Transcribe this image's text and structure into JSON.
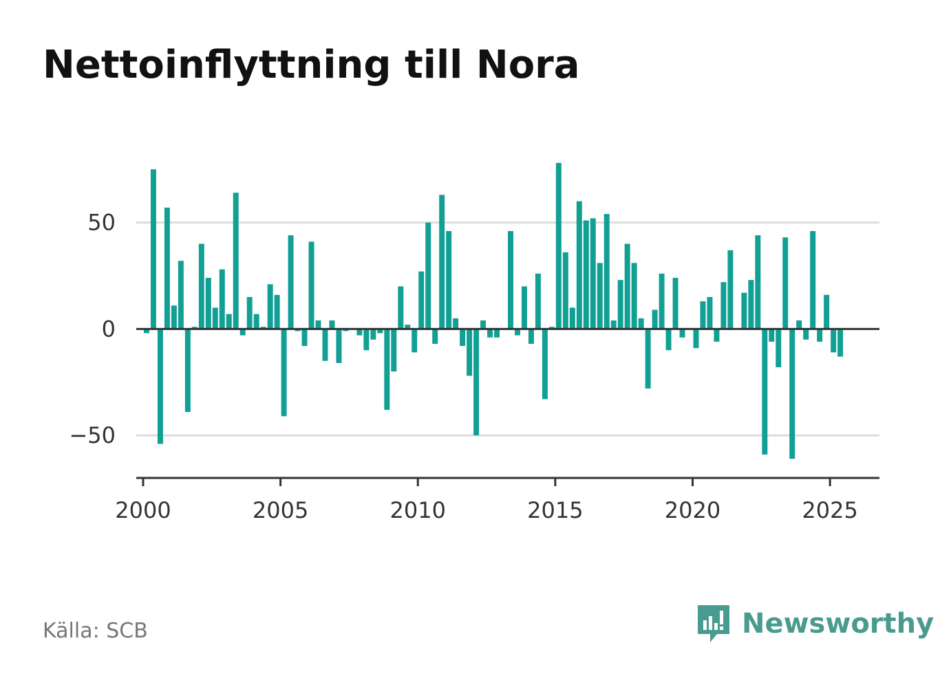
{
  "title": "Nettoinflyttning till Nora",
  "source": "Källa: SCB",
  "brand": {
    "name": "Newsworthy",
    "icon": "newsworthy-logo-icon",
    "color": "#4a9b8f"
  },
  "colors": {
    "bar": "#12a094",
    "grid": "#dddddd",
    "zero_line": "#333333",
    "axis": "#333333"
  },
  "chart_data": {
    "type": "bar",
    "title": "Nettoinflyttning till Nora",
    "xlabel": "",
    "ylabel": "",
    "frequency": "quarterly",
    "x_start": "2000-Q1",
    "ylim": [
      -70,
      77
    ],
    "xlim": [
      1999.75,
      2026.8
    ],
    "yticks": [
      -50,
      0,
      50
    ],
    "ytick_labels": [
      "−50",
      "0",
      "50"
    ],
    "xticks": [
      2000,
      2005,
      2010,
      2015,
      2020,
      2025
    ],
    "xtick_labels": [
      "2000",
      "2005",
      "2010",
      "2015",
      "2020",
      "2025"
    ],
    "grid": "horizontal",
    "categories": [
      "2000-Q1",
      "2000-Q2",
      "2000-Q3",
      "2000-Q4",
      "2001-Q1",
      "2001-Q2",
      "2001-Q3",
      "2001-Q4",
      "2002-Q1",
      "2002-Q2",
      "2002-Q3",
      "2002-Q4",
      "2003-Q1",
      "2003-Q2",
      "2003-Q3",
      "2003-Q4",
      "2004-Q1",
      "2004-Q2",
      "2004-Q3",
      "2004-Q4",
      "2005-Q1",
      "2005-Q2",
      "2005-Q3",
      "2005-Q4",
      "2006-Q1",
      "2006-Q2",
      "2006-Q3",
      "2006-Q4",
      "2007-Q1",
      "2007-Q2",
      "2007-Q3",
      "2007-Q4",
      "2008-Q1",
      "2008-Q2",
      "2008-Q3",
      "2008-Q4",
      "2009-Q1",
      "2009-Q2",
      "2009-Q3",
      "2009-Q4",
      "2010-Q1",
      "2010-Q2",
      "2010-Q3",
      "2010-Q4",
      "2011-Q1",
      "2011-Q2",
      "2011-Q3",
      "2011-Q4",
      "2012-Q1",
      "2012-Q2",
      "2012-Q3",
      "2012-Q4",
      "2013-Q1",
      "2013-Q2",
      "2013-Q3",
      "2013-Q4",
      "2014-Q1",
      "2014-Q2",
      "2014-Q3",
      "2014-Q4",
      "2015-Q1",
      "2015-Q2",
      "2015-Q3",
      "2015-Q4",
      "2016-Q1",
      "2016-Q2",
      "2016-Q3",
      "2016-Q4",
      "2017-Q1",
      "2017-Q2",
      "2017-Q3",
      "2017-Q4",
      "2018-Q1",
      "2018-Q2",
      "2018-Q3",
      "2018-Q4",
      "2019-Q1",
      "2019-Q2",
      "2019-Q3",
      "2019-Q4",
      "2020-Q1",
      "2020-Q2",
      "2020-Q3",
      "2020-Q4",
      "2021-Q1",
      "2021-Q2",
      "2021-Q3",
      "2021-Q4",
      "2022-Q1",
      "2022-Q2",
      "2022-Q3",
      "2022-Q4",
      "2023-Q1",
      "2023-Q2",
      "2023-Q3",
      "2023-Q4",
      "2024-Q1",
      "2024-Q2",
      "2024-Q3",
      "2024-Q4",
      "2025-Q1",
      "2025-Q2"
    ],
    "values": [
      -2,
      75,
      -54,
      57,
      11,
      32,
      -39,
      1,
      40,
      24,
      10,
      28,
      7,
      64,
      -3,
      15,
      7,
      1,
      21,
      16,
      -41,
      44,
      -1,
      -8,
      41,
      4,
      -15,
      4,
      -16,
      -1,
      0,
      -3,
      -10,
      -5,
      -2,
      -38,
      -20,
      20,
      2,
      -11,
      27,
      50,
      -7,
      63,
      46,
      5,
      -8,
      -22,
      -50,
      4,
      -4,
      -4,
      0,
      46,
      -3,
      20,
      -7,
      26,
      -33,
      1,
      78,
      36,
      10,
      60,
      51,
      52,
      31,
      54,
      4,
      23,
      40,
      31,
      5,
      -28,
      9,
      26,
      -10,
      24,
      -4,
      0,
      -9,
      13,
      15,
      -6,
      22,
      37,
      0,
      17,
      23,
      44,
      -59,
      -6,
      -18,
      43,
      -61,
      4,
      -5,
      46,
      -6,
      16,
      -11,
      -13
    ]
  }
}
